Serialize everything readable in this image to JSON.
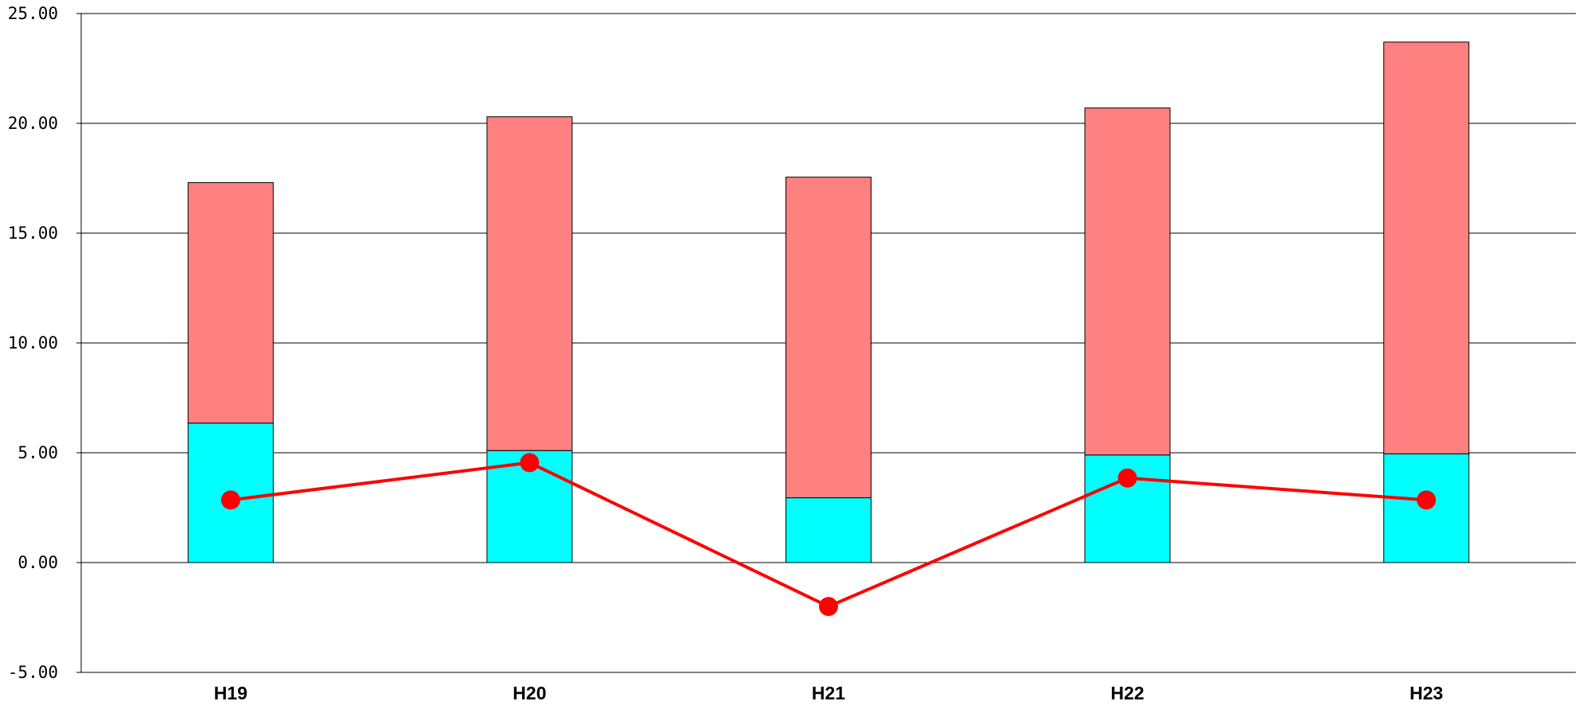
{
  "chart_data": {
    "type": "bar",
    "stacked": true,
    "categories": [
      "H19",
      "H20",
      "H21",
      "H22",
      "H23"
    ],
    "series": [
      {
        "type": "bar",
        "color": "#00ffff",
        "values": [
          6.35,
          5.1,
          2.95,
          4.9,
          4.95
        ]
      },
      {
        "type": "bar",
        "color": "#ff8080",
        "values": [
          10.95,
          15.2,
          14.6,
          15.8,
          18.75
        ]
      },
      {
        "type": "line",
        "color": "#ff0000",
        "marker": "circle",
        "values": [
          2.85,
          4.55,
          -2.0,
          3.85,
          2.85
        ]
      }
    ],
    "title": "",
    "xlabel": "",
    "ylabel": "",
    "ylim": [
      -5,
      25
    ],
    "yticks": [
      "25.00",
      "20.00",
      "15.00",
      "10.00",
      "5.00",
      "0.00",
      "-5.00"
    ],
    "ytick_values": [
      25,
      20,
      15,
      10,
      5,
      0,
      -5
    ],
    "grid": true,
    "legend": "none"
  }
}
